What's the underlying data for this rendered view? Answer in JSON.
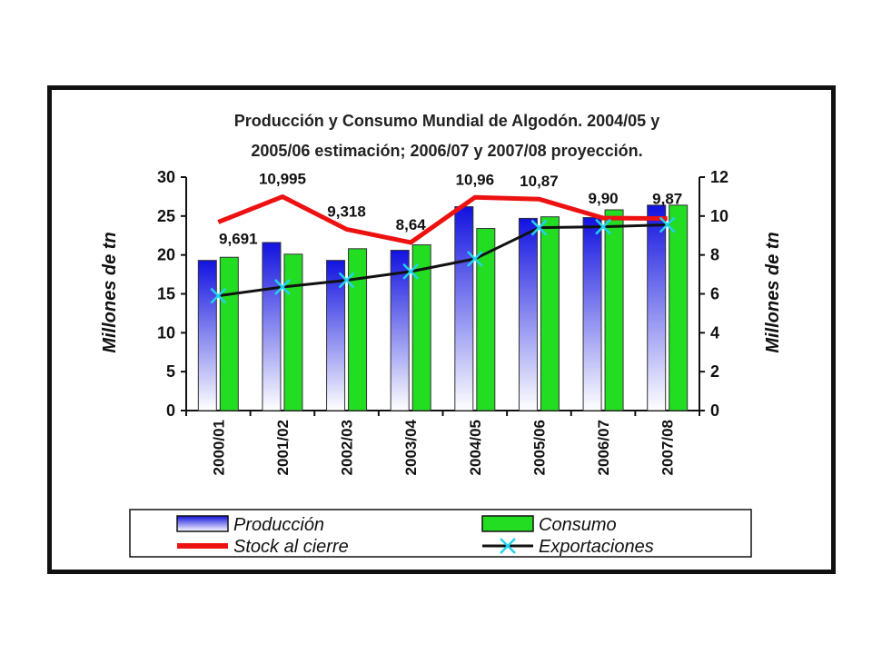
{
  "chart_data": {
    "type": "bar",
    "title": [
      "Producción y Consumo Mundial de Algodón.   2004/05 y",
      "2005/06 estimación; 2006/07 y 2007/08  proyección."
    ],
    "categories": [
      "2000/01",
      "2001/02",
      "2002/03",
      "2003/04",
      "2004/05",
      "2005/06",
      "2006/07",
      "2007/08"
    ],
    "ylabel": "Millones de tn",
    "y2label": "Millones de tn",
    "ylim": [
      0,
      30
    ],
    "y2lim": [
      0,
      12
    ],
    "yticks": [
      "0",
      "5",
      "10",
      "15",
      "20",
      "25",
      "30"
    ],
    "y2ticks": [
      "0",
      "2",
      "4",
      "6",
      "8",
      "10",
      "12"
    ],
    "series": [
      {
        "name": "Producción",
        "type": "bar",
        "axis": "left",
        "color": "#2a2ae6",
        "values": [
          19.3,
          21.6,
          19.3,
          20.6,
          26.2,
          24.7,
          24.8,
          26.4
        ]
      },
      {
        "name": "Consumo",
        "type": "bar",
        "axis": "left",
        "color": "#22dd22",
        "values": [
          19.7,
          20.1,
          20.8,
          21.3,
          23.4,
          24.9,
          25.8,
          26.4
        ]
      },
      {
        "name": "Stock al cierre",
        "type": "line",
        "axis": "right",
        "color": "#ee1111",
        "values": [
          9.691,
          10.995,
          9.318,
          8.64,
          10.96,
          10.87,
          9.9,
          9.87
        ],
        "labels": [
          "9,691",
          "10,995",
          "9,318",
          "8,64",
          "10,96",
          "10,87",
          "9,90",
          "9,87"
        ]
      },
      {
        "name": "Exportaciones",
        "type": "line",
        "axis": "right",
        "color": "#111111",
        "marker_color": "#22d3ee",
        "values": [
          5.9,
          6.35,
          6.7,
          7.15,
          7.8,
          9.4,
          9.45,
          9.55
        ]
      }
    ],
    "legend": "bottom",
    "grid": false
  }
}
